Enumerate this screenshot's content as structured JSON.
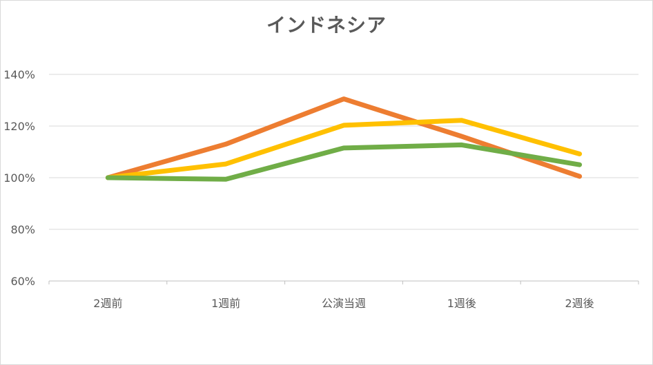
{
  "chart_data": {
    "type": "line",
    "title": "インドネシア",
    "categories": [
      "2週前",
      "1週前",
      "公演当週",
      "1週後",
      "2週後"
    ],
    "ylim": [
      0.6,
      1.4
    ],
    "yticks": [
      0.6,
      0.8,
      1.0,
      1.2,
      1.4
    ],
    "ytick_labels": [
      "60%",
      "80%",
      "100%",
      "120%",
      "140%"
    ],
    "grid": true,
    "series": [
      {
        "color": "#ED7D31",
        "values": [
          1.0,
          1.13,
          1.305,
          1.16,
          1.005
        ]
      },
      {
        "color": "#FFC000",
        "values": [
          1.0,
          1.053,
          1.203,
          1.222,
          1.092
        ]
      },
      {
        "color": "#70AD47",
        "values": [
          1.0,
          0.994,
          1.115,
          1.127,
          1.05
        ]
      }
    ]
  }
}
